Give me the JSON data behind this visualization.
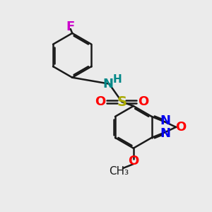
{
  "background_color": "#ebebeb",
  "bond_color": "#1a1a1a",
  "bond_width": 1.8,
  "atoms": {
    "F": {
      "color": "#cc00cc",
      "fontsize": 13
    },
    "O": {
      "color": "#ff0000",
      "fontsize": 13
    },
    "N": {
      "color": "#0000ee",
      "fontsize": 13
    },
    "S": {
      "color": "#aaaa00",
      "fontsize": 14
    },
    "NH_N": {
      "color": "#008888",
      "fontsize": 13
    },
    "NH_H": {
      "color": "#008888",
      "fontsize": 11
    },
    "methoxy": {
      "color": "#ff0000",
      "fontsize": 13
    },
    "methyl": {
      "color": "#1a1a1a",
      "fontsize": 11
    }
  },
  "figsize": [
    3.0,
    3.0
  ],
  "dpi": 100
}
